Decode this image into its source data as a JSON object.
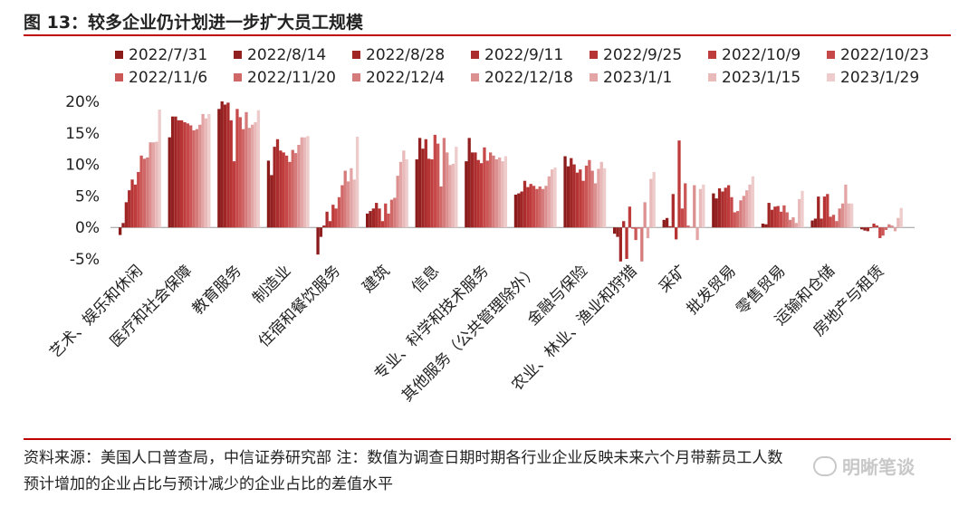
{
  "figure": {
    "title": "图 13：较多企业仍计划进一步扩大员工规模",
    "note_line1": "资料来源：美国人口普查局，中信证券研究部    注：数值为调查日期时期各行业企业反映未来六个月带薪员工人数",
    "note_line2": "预计增加的企业占比与预计减少的企业占比的差值水平",
    "watermark": "明晰笔谈",
    "watermark_icon": "wechat-icon"
  },
  "chart_data": {
    "type": "bar",
    "ylim": [
      -5,
      20
    ],
    "yticks": [
      "-5%",
      "0%",
      "5%",
      "10%",
      "15%",
      "20%"
    ],
    "ytick_values": [
      -5,
      0,
      5,
      10,
      15,
      20
    ],
    "grid": false,
    "legend_position": "top",
    "categories": [
      "艺术、娱乐和休闲",
      "医疗和社会保障",
      "教育服务",
      "制造业",
      "住宿和餐饮服务",
      "建筑",
      "信息",
      "专业、科学和技术服务",
      "其他服务（公共管理除外）",
      "金融与保险",
      "农业、林业、渔业和狩猎",
      "采矿",
      "批发贸易",
      "零售贸易",
      "运输和仓储",
      "房地产与租赁"
    ],
    "series": [
      {
        "name": "2022/7/31",
        "color": "#8b1a1a",
        "values": [
          -1.2,
          14.3,
          18.8,
          10.6,
          -4.3,
          2.2,
          10.8,
          10.5,
          5.2,
          11.3,
          -1.0,
          1.2,
          5.4,
          0.6,
          1.1,
          -0.3
        ]
      },
      {
        "name": "2022/8/14",
        "color": "#922020",
        "values": [
          0.7,
          17.6,
          20.0,
          8.3,
          -1.5,
          2.6,
          14.2,
          14.2,
          5.4,
          9.7,
          -1.5,
          1.5,
          4.6,
          0.5,
          1.4,
          -0.5
        ]
      },
      {
        "name": "2022/8/28",
        "color": "#a02626",
        "values": [
          4.0,
          17.6,
          19.5,
          12.8,
          0.3,
          3.0,
          12.5,
          11.9,
          5.7,
          11.0,
          -5.4,
          0.2,
          6.2,
          3.9,
          4.9,
          -0.6
        ]
      },
      {
        "name": "2022/9/11",
        "color": "#ab2d2d",
        "values": [
          5.9,
          17.0,
          19.8,
          14.0,
          2.5,
          3.9,
          14.0,
          11.9,
          7.4,
          10.0,
          1.0,
          5.3,
          5.7,
          2.8,
          1.4,
          0.0
        ]
      },
      {
        "name": "2022/9/25",
        "color": "#b63434",
        "values": [
          7.6,
          17.0,
          17.0,
          12.2,
          1.0,
          3.0,
          10.9,
          10.7,
          6.4,
          8.7,
          -5.0,
          -1.9,
          6.3,
          3.3,
          4.9,
          0.6
        ]
      },
      {
        "name": "2022/10/9",
        "color": "#bf3c3c",
        "values": [
          6.8,
          16.7,
          10.5,
          11.9,
          3.6,
          1.0,
          10.8,
          10.2,
          6.9,
          9.2,
          3.3,
          13.8,
          6.7,
          3.4,
          5.3,
          0.3
        ]
      },
      {
        "name": "2022/10/23",
        "color": "#c64848",
        "values": [
          8.8,
          16.5,
          18.8,
          11.4,
          3.0,
          3.8,
          14.7,
          12.7,
          6.6,
          7.4,
          -0.2,
          3.0,
          4.8,
          2.5,
          1.7,
          -1.7
        ]
      },
      {
        "name": "2022/11/6",
        "color": "#cc5757",
        "values": [
          11.4,
          16.2,
          17.5,
          10.4,
          4.8,
          2.2,
          13.3,
          10.6,
          6.1,
          9.8,
          -2.0,
          7.0,
          2.4,
          3.5,
          2.0,
          -1.3
        ]
      },
      {
        "name": "2022/11/20",
        "color": "#d16868",
        "values": [
          10.9,
          15.4,
          15.6,
          12.3,
          6.7,
          4.4,
          6.5,
          11.9,
          6.5,
          10.7,
          -0.2,
          0.3,
          2.6,
          2.4,
          1.0,
          -0.4
        ]
      },
      {
        "name": "2022/12/4",
        "color": "#d67b7b",
        "values": [
          11.1,
          15.6,
          18.3,
          11.8,
          9.0,
          4.7,
          14.2,
          11.4,
          6.1,
          9.0,
          -5.4,
          0.1,
          4.3,
          1.2,
          3.0,
          0.5
        ]
      },
      {
        "name": "2022/12/18",
        "color": "#dc9090",
        "values": [
          13.5,
          16.3,
          15.8,
          13.1,
          7.3,
          8.2,
          11.9,
          10.8,
          6.6,
          7.0,
          4.0,
          6.7,
          5.0,
          1.6,
          3.8,
          0.3
        ]
      },
      {
        "name": "2023/1/1",
        "color": "#e3a5a5",
        "values": [
          13.5,
          18.0,
          16.3,
          14.3,
          9.4,
          10.4,
          9.9,
          11.1,
          8.1,
          9.3,
          -1.7,
          -2.0,
          5.9,
          0.7,
          6.8,
          -0.6
        ]
      },
      {
        "name": "2023/1/15",
        "color": "#e9baba",
        "values": [
          13.6,
          17.3,
          16.7,
          14.3,
          7.6,
          12.2,
          10.1,
          10.5,
          9.2,
          10.4,
          7.7,
          6.1,
          6.8,
          4.5,
          3.8,
          1.5
        ]
      },
      {
        "name": "2023/1/29",
        "color": "#eecccc",
        "values": [
          18.7,
          18.0,
          18.6,
          14.5,
          14.4,
          10.8,
          12.8,
          11.3,
          9.5,
          9.4,
          8.8,
          6.8,
          8.1,
          5.8,
          3.8,
          3.1
        ]
      }
    ]
  }
}
